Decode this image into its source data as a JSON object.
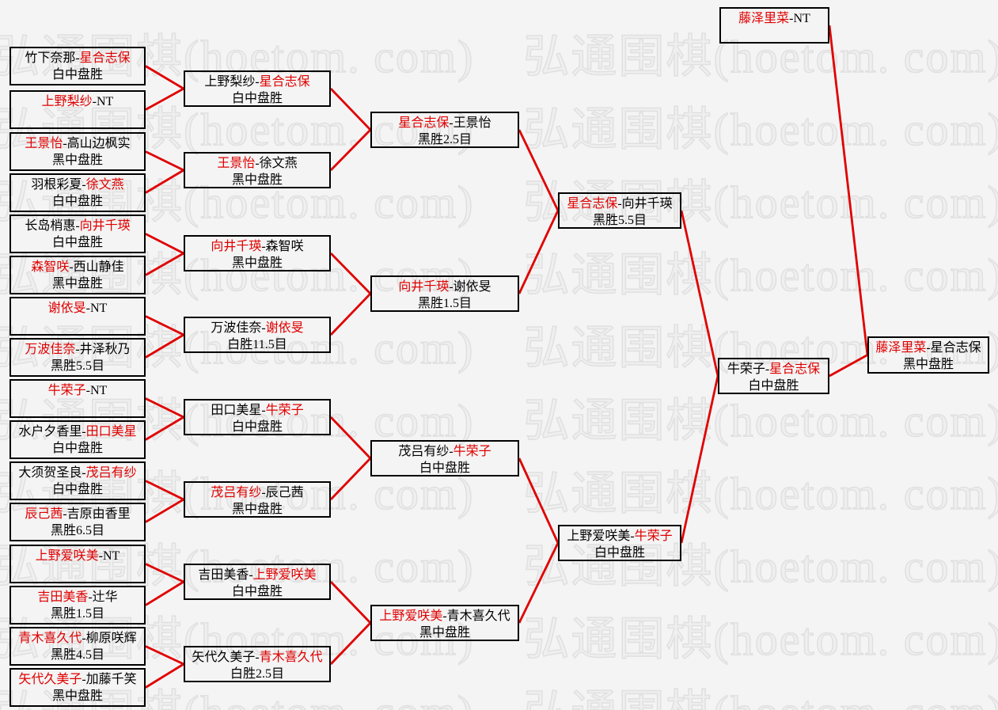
{
  "page": {
    "background": "#f4f4f4"
  },
  "colors": {
    "accent_red": "#e00000",
    "box_border": "#000000",
    "text": "#000000",
    "watermark": "#e0e0e0"
  },
  "watermark": {
    "text": "弘通围棋(hoetom. com)",
    "tiles_per_row": 2,
    "rows": 10
  },
  "bracket": {
    "separator": "-",
    "rounds": [
      {
        "label": "round-1",
        "matches": [
          {
            "p1": "竹下奈那",
            "p2": "星合志保",
            "winner": 2,
            "result": "白中盘胜"
          },
          {
            "p1": "上野梨纱",
            "p2": "NT",
            "winner": 1,
            "result": ""
          },
          {
            "p1": "王景怡",
            "p2": "高山边枫实",
            "winner": 1,
            "result": "黑中盘胜"
          },
          {
            "p1": "羽根彩夏",
            "p2": "徐文燕",
            "winner": 2,
            "result": "白中盘胜"
          },
          {
            "p1": "长岛梢惠",
            "p2": "向井千瑛",
            "winner": 2,
            "result": "白中盘胜"
          },
          {
            "p1": "森智咲",
            "p2": "西山静佳",
            "winner": 1,
            "result": "黑中盘胜"
          },
          {
            "p1": "谢依旻",
            "p2": "NT",
            "winner": 1,
            "result": ""
          },
          {
            "p1": "万波佳奈",
            "p2": "井泽秋乃",
            "winner": 1,
            "result": "黑胜5.5目"
          },
          {
            "p1": "牛荣子",
            "p2": "NT",
            "winner": 1,
            "result": ""
          },
          {
            "p1": "水户夕香里",
            "p2": "田口美星",
            "winner": 2,
            "result": "白中盘胜"
          },
          {
            "p1": "大须贺圣良",
            "p2": "茂吕有纱",
            "winner": 2,
            "result": "白中盘胜"
          },
          {
            "p1": "辰己茜",
            "p2": "吉原由香里",
            "winner": 1,
            "result": "黑胜6.5目"
          },
          {
            "p1": "上野爱咲美",
            "p2": "NT",
            "winner": 1,
            "result": ""
          },
          {
            "p1": "吉田美香",
            "p2": "辻华",
            "winner": 1,
            "result": "黑胜1.5目"
          },
          {
            "p1": "青木喜久代",
            "p2": "柳原咲辉",
            "winner": 1,
            "result": "黑胜4.5目"
          },
          {
            "p1": "矢代久美子",
            "p2": "加藤千笑",
            "winner": 1,
            "result": "黑中盘胜"
          }
        ]
      },
      {
        "label": "round-2",
        "matches": [
          {
            "p1": "上野梨纱",
            "p2": "星合志保",
            "winner": 2,
            "result": "白中盘胜"
          },
          {
            "p1": "王景怡",
            "p2": "徐文燕",
            "winner": 1,
            "result": "黑中盘胜"
          },
          {
            "p1": "向井千瑛",
            "p2": "森智咲",
            "winner": 1,
            "result": "黑中盘胜"
          },
          {
            "p1": "万波佳奈",
            "p2": "谢依旻",
            "winner": 2,
            "result": "白胜11.5目"
          },
          {
            "p1": "田口美星",
            "p2": "牛荣子",
            "winner": 2,
            "result": "白中盘胜"
          },
          {
            "p1": "茂吕有纱",
            "p2": "辰己茜",
            "winner": 1,
            "result": "黑中盘胜"
          },
          {
            "p1": "吉田美香",
            "p2": "上野爱咲美",
            "winner": 2,
            "result": "白中盘胜"
          },
          {
            "p1": "矢代久美子",
            "p2": "青木喜久代",
            "winner": 2,
            "result": "白胜2.5目"
          }
        ]
      },
      {
        "label": "round-3",
        "matches": [
          {
            "p1": "星合志保",
            "p2": "王景怡",
            "winner": 1,
            "result": "黑胜2.5目"
          },
          {
            "p1": "向井千瑛",
            "p2": "谢依旻",
            "winner": 1,
            "result": "黑胜1.5目"
          },
          {
            "p1": "茂吕有纱",
            "p2": "牛荣子",
            "winner": 2,
            "result": "白中盘胜"
          },
          {
            "p1": "上野爱咲美",
            "p2": "青木喜久代",
            "winner": 1,
            "result": "黑中盘胜"
          }
        ]
      },
      {
        "label": "round-4",
        "matches": [
          {
            "p1": "星合志保",
            "p2": "向井千瑛",
            "winner": 1,
            "result": "黑胜5.5目"
          },
          {
            "p1": "上野爱咲美",
            "p2": "牛荣子",
            "winner": 2,
            "result": "白中盘胜"
          }
        ]
      },
      {
        "label": "round-5",
        "matches": [
          {
            "p1": "牛荣子",
            "p2": "星合志保",
            "winner": 2,
            "result": "白中盘胜"
          }
        ]
      }
    ],
    "seed": {
      "p1": "藤泽里菜",
      "p2": "NT",
      "winner": 1,
      "result": ""
    },
    "final": {
      "p1": "藤泽里菜",
      "p2": "星合志保",
      "winner": 1,
      "result": "黑中盘胜"
    }
  }
}
